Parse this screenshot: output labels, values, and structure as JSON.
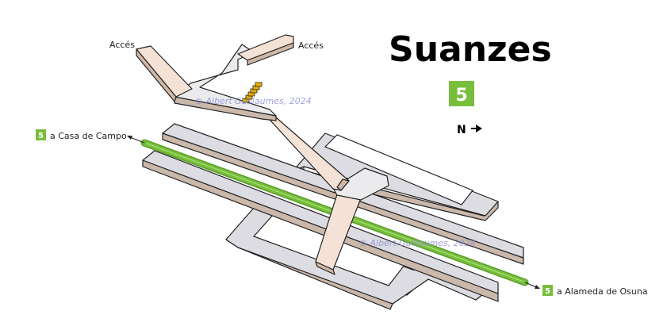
{
  "station": {
    "name": "Suanzes",
    "line_number": "5",
    "line_color": "#78be3c"
  },
  "north": {
    "label": "N"
  },
  "entrances": [
    {
      "label": "Accés"
    },
    {
      "label": "Accés"
    }
  ],
  "directions": [
    {
      "line": "5",
      "label": "a Casa de Campo"
    },
    {
      "line": "5",
      "label": "a Alameda de Osuna"
    }
  ],
  "watermarks": [
    {
      "text": "© Albert Guillaumes, 2024"
    },
    {
      "text": "© Albert Guillaumes, 2024"
    }
  ],
  "colors": {
    "platform": "#dcdce2",
    "platform_edge": "#cab8aa",
    "passage": "#f4e2d6",
    "escalator": "#e8b000",
    "track": "#78be3c"
  }
}
